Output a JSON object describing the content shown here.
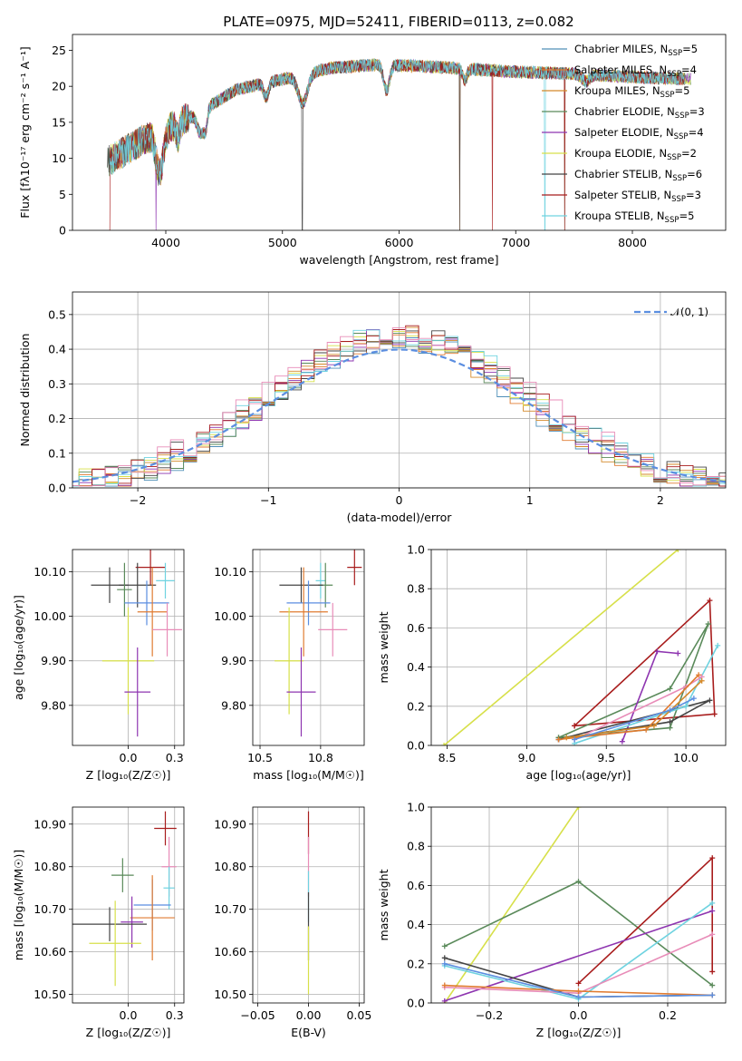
{
  "figure": {
    "title": "PLATE=0975, MJD=52411, FIBERID=0113, z=0.082"
  },
  "chart_data": [
    {
      "id": "spectrum",
      "type": "line",
      "xlabel": "wavelength [Angstrom, rest frame]",
      "ylabel": "Flux [fλ10⁻¹⁷ erg cm⁻² s⁻¹ A⁻¹]",
      "xlim": [
        3200,
        8800
      ],
      "ylim": [
        0,
        27.2
      ],
      "xticks": [
        4000,
        5000,
        6000,
        7000,
        8000
      ],
      "yticks": [
        0,
        5,
        10,
        15,
        20,
        25
      ],
      "grid": false,
      "legend_position": "top-right",
      "continuum": {
        "x": [
          3500,
          3600,
          3800,
          4000,
          4300,
          4600,
          5000,
          5400,
          5800,
          6200,
          6600,
          7000,
          7400,
          8000,
          8500
        ],
        "y": [
          9.5,
          10.5,
          12.5,
          14,
          16.5,
          19.5,
          21,
          22.5,
          23,
          22.8,
          22.4,
          22,
          21.8,
          21.3,
          21
        ]
      },
      "series": [
        {
          "name": "Chabrier MILES, N",
          "sub": "SSP",
          "suffix": "=5",
          "color": "#4f8fb8"
        },
        {
          "name": "Salpeter MILES, N",
          "sub": "SSP",
          "suffix": "=4",
          "color": "#e07b30"
        },
        {
          "name": "Kroupa MILES, N",
          "sub": "SSP",
          "suffix": "=5",
          "color": "#d4892a"
        },
        {
          "name": "Chabrier ELODIE, N",
          "sub": "SSP",
          "suffix": "=3",
          "color": "#5a8a5a"
        },
        {
          "name": "Salpeter ELODIE, N",
          "sub": "SSP",
          "suffix": "=4",
          "color": "#8e35b0"
        },
        {
          "name": "Kroupa ELODIE, N",
          "sub": "SSP",
          "suffix": "=2",
          "color": "#d7e04a"
        },
        {
          "name": "Chabrier STELIB, N",
          "sub": "SSP",
          "suffix": "=6",
          "color": "#444444"
        },
        {
          "name": "Salpeter STELIB, N",
          "sub": "SSP",
          "suffix": "=3",
          "color": "#a81c1c"
        },
        {
          "name": "Kroupa STELIB, N",
          "sub": "SSP",
          "suffix": "=5",
          "color": "#6fd3e0"
        }
      ]
    },
    {
      "id": "residuals",
      "type": "line",
      "xlabel": "(data-model)/error",
      "ylabel": "Normed distribution",
      "xlim": [
        -2.5,
        2.5
      ],
      "ylim": [
        0,
        0.565
      ],
      "xticks": [
        -2,
        -1,
        0,
        1,
        2
      ],
      "yticks": [
        0.0,
        0.1,
        0.2,
        0.3,
        0.4,
        0.5
      ],
      "grid": true,
      "legend_position": "top-right",
      "legend_label": "𝒩(0, 1)",
      "normal_color": "#5b8ee0",
      "hist_colors": [
        "#4f8fb8",
        "#e07b30",
        "#d4892a",
        "#5a8a5a",
        "#8e35b0",
        "#d7e04a",
        "#444444",
        "#a81c1c",
        "#6fd3e0",
        "#e88cb8"
      ]
    },
    {
      "id": "Z-age",
      "type": "scatter",
      "xlabel": "Z [log₁₀(Z/Z☉)]",
      "ylabel": "age  [log₁₀(age/yr)]",
      "xlim": [
        -0.3,
        0.3
      ],
      "ylim": [
        9.71,
        10.15
      ],
      "xticks": [
        0.0,
        0.25
      ],
      "yticks": [
        9.8,
        9.9,
        10.0,
        10.1
      ],
      "grid": true,
      "points": [
        {
          "x": 0.12,
          "y": 10.11,
          "ex": 0.08,
          "ey": 0.04,
          "color": "#a81c1c"
        },
        {
          "x": 0.2,
          "y": 10.08,
          "ex": 0.05,
          "ey": 0.04,
          "color": "#6fd3e0"
        },
        {
          "x": 0.05,
          "y": 10.07,
          "ex": 0.1,
          "ey": 0.05,
          "color": "#444444"
        },
        {
          "x": -0.1,
          "y": 10.07,
          "ex": 0.1,
          "ey": 0.04,
          "color": "#444444"
        },
        {
          "x": -0.02,
          "y": 10.06,
          "ex": 0.04,
          "ey": 0.06,
          "color": "#5a8a5a"
        },
        {
          "x": 0.1,
          "y": 10.03,
          "ex": 0.12,
          "ey": 0.05,
          "color": "#5b8ee0"
        },
        {
          "x": 0.13,
          "y": 10.01,
          "ex": 0.08,
          "ey": 0.1,
          "color": "#e07b30"
        },
        {
          "x": 0.21,
          "y": 9.97,
          "ex": 0.08,
          "ey": 0.06,
          "color": "#e88cb8"
        },
        {
          "x": 0.0,
          "y": 9.9,
          "ex": 0.14,
          "ey": 0.12,
          "color": "#d7e04a"
        },
        {
          "x": 0.05,
          "y": 9.83,
          "ex": 0.07,
          "ey": 0.1,
          "color": "#8e35b0"
        }
      ]
    },
    {
      "id": "mass-age",
      "type": "scatter",
      "xlabel": "mass [log₁₀(M/M☉)]",
      "ylabel": "",
      "xlim": [
        10.47,
        10.93
      ],
      "ylim": [
        9.71,
        10.15
      ],
      "xticks": [
        10.5,
        10.75
      ],
      "yticks": [
        9.8,
        9.9,
        10.0,
        10.1
      ],
      "grid": true,
      "points": [
        {
          "x": 10.89,
          "y": 10.11,
          "ex": 0.03,
          "ey": 0.04,
          "color": "#a81c1c"
        },
        {
          "x": 10.75,
          "y": 10.08,
          "ex": 0.02,
          "ey": 0.04,
          "color": "#6fd3e0"
        },
        {
          "x": 10.77,
          "y": 10.07,
          "ex": 0.03,
          "ey": 0.05,
          "color": "#5a8a5a"
        },
        {
          "x": 10.67,
          "y": 10.07,
          "ex": 0.09,
          "ey": 0.04,
          "color": "#444444"
        },
        {
          "x": 10.7,
          "y": 10.03,
          "ex": 0.09,
          "ey": 0.05,
          "color": "#5b8ee0"
        },
        {
          "x": 10.68,
          "y": 10.01,
          "ex": 0.1,
          "ey": 0.1,
          "color": "#e07b30"
        },
        {
          "x": 10.8,
          "y": 9.97,
          "ex": 0.06,
          "ey": 0.06,
          "color": "#e88cb8"
        },
        {
          "x": 10.62,
          "y": 9.9,
          "ex": 0.06,
          "ey": 0.12,
          "color": "#d7e04a"
        },
        {
          "x": 10.67,
          "y": 9.83,
          "ex": 0.06,
          "ey": 0.1,
          "color": "#8e35b0"
        }
      ]
    },
    {
      "id": "age-weight",
      "type": "line",
      "xlabel": "age  [log₁₀(age/yr)]",
      "ylabel": "mass weight",
      "xlim": [
        8.4,
        10.25
      ],
      "ylim": [
        0,
        1.0
      ],
      "xticks": [
        8.5,
        9.0,
        9.5,
        10.0
      ],
      "yticks": [
        0.0,
        0.2,
        0.4,
        0.6,
        0.8,
        1.0
      ],
      "grid": true,
      "series": [
        {
          "color": "#d7e04a",
          "x": [
            8.48,
            9.95
          ],
          "y": [
            0.0,
            1.0
          ]
        },
        {
          "color": "#a81c1c",
          "x": [
            9.3,
            10.15,
            10.18,
            9.3
          ],
          "y": [
            0.1,
            0.74,
            0.16,
            0.1
          ]
        },
        {
          "color": "#5a8a5a",
          "x": [
            9.2,
            9.9,
            10.14,
            9.9,
            9.2
          ],
          "y": [
            0.04,
            0.09,
            0.62,
            0.29,
            0.04
          ]
        },
        {
          "color": "#8e35b0",
          "x": [
            9.6,
            9.82,
            9.95
          ],
          "y": [
            0.02,
            0.48,
            0.47
          ]
        },
        {
          "color": "#444444",
          "x": [
            9.2,
            9.9,
            10.15,
            9.2
          ],
          "y": [
            0.03,
            0.12,
            0.23,
            0.03
          ]
        },
        {
          "color": "#6fd3e0",
          "x": [
            9.3,
            10.0,
            10.2
          ],
          "y": [
            0.01,
            0.2,
            0.51
          ]
        },
        {
          "color": "#e88cb8",
          "x": [
            9.3,
            10.0,
            10.1
          ],
          "y": [
            0.03,
            0.3,
            0.35
          ]
        },
        {
          "color": "#e07b30",
          "x": [
            9.2,
            9.75,
            10.08
          ],
          "y": [
            0.03,
            0.08,
            0.36
          ]
        },
        {
          "color": "#d4892a",
          "x": [
            9.25,
            9.8,
            10.1
          ],
          "y": [
            0.04,
            0.1,
            0.33
          ]
        },
        {
          "color": "#5b8ee0",
          "x": [
            9.3,
            9.9,
            10.05
          ],
          "y": [
            0.03,
            0.18,
            0.24
          ]
        }
      ]
    },
    {
      "id": "Z-mass",
      "type": "scatter",
      "xlabel": "Z [log₁₀(Z/Z☉)]",
      "ylabel": "mass [log₁₀(M/M☉)]",
      "xlim": [
        -0.3,
        0.3
      ],
      "ylim": [
        10.48,
        10.94
      ],
      "xticks": [
        0.0,
        0.25
      ],
      "yticks": [
        10.5,
        10.6,
        10.7,
        10.8,
        10.9
      ],
      "grid": true,
      "points": [
        {
          "x": 0.2,
          "y": 10.89,
          "ex": 0.06,
          "ey": 0.04,
          "color": "#a81c1c"
        },
        {
          "x": 0.22,
          "y": 10.8,
          "ex": 0.04,
          "ey": 0.07,
          "color": "#e88cb8"
        },
        {
          "x": -0.03,
          "y": 10.78,
          "ex": 0.06,
          "ey": 0.04,
          "color": "#5a8a5a"
        },
        {
          "x": 0.22,
          "y": 10.75,
          "ex": 0.03,
          "ey": 0.05,
          "color": "#6fd3e0"
        },
        {
          "x": 0.13,
          "y": 10.71,
          "ex": 0.1,
          "ey": 0.06,
          "color": "#5b8ee0"
        },
        {
          "x": 0.13,
          "y": 10.68,
          "ex": 0.12,
          "ey": 0.1,
          "color": "#e07b30"
        },
        {
          "x": 0.02,
          "y": 10.67,
          "ex": 0.06,
          "ey": 0.06,
          "color": "#8e35b0"
        },
        {
          "x": -0.1,
          "y": 10.665,
          "ex": 0.2,
          "ey": 0.04,
          "color": "#444444"
        },
        {
          "x": -0.07,
          "y": 10.62,
          "ex": 0.14,
          "ey": 0.1,
          "color": "#d7e04a"
        }
      ]
    },
    {
      "id": "ebv-mass",
      "type": "scatter",
      "xlabel": "E(B-V)",
      "ylabel": "",
      "xlim": [
        -0.055,
        0.055
      ],
      "ylim": [
        10.48,
        10.94
      ],
      "xticks": [
        -0.05,
        0.0,
        0.05
      ],
      "yticks": [
        10.5,
        10.6,
        10.7,
        10.8,
        10.9
      ],
      "grid": true,
      "points": [
        {
          "x": 0.0,
          "y": 10.88,
          "ex": 0.0,
          "ey": 0.05,
          "color": "#a81c1c"
        },
        {
          "x": 0.0,
          "y": 10.8,
          "ex": 0.0,
          "ey": 0.07,
          "color": "#e88cb8"
        },
        {
          "x": 0.0,
          "y": 10.73,
          "ex": 0.0,
          "ey": 0.06,
          "color": "#6fd3e0"
        },
        {
          "x": 0.0,
          "y": 10.66,
          "ex": 0.0,
          "ey": 0.08,
          "color": "#444444"
        },
        {
          "x": 0.0,
          "y": 10.58,
          "ex": 0.0,
          "ey": 0.08,
          "color": "#d7e04a"
        }
      ]
    },
    {
      "id": "Z-weight",
      "type": "line",
      "xlabel": "Z [log₁₀(Z/Z☉)]",
      "ylabel": "mass weight",
      "xlim": [
        -0.33,
        0.33
      ],
      "ylim": [
        0,
        1.0
      ],
      "xticks": [
        -0.2,
        0.0,
        0.2
      ],
      "yticks": [
        0.0,
        0.2,
        0.4,
        0.6,
        0.8,
        1.0
      ],
      "grid": true,
      "series": [
        {
          "color": "#d7e04a",
          "x": [
            -0.3,
            0.0
          ],
          "y": [
            0.0,
            1.0
          ]
        },
        {
          "color": "#5a8a5a",
          "x": [
            -0.3,
            0.0,
            0.3
          ],
          "y": [
            0.29,
            0.62,
            0.09
          ]
        },
        {
          "color": "#a81c1c",
          "x": [
            0.0,
            0.3,
            0.3
          ],
          "y": [
            0.1,
            0.74,
            0.16
          ]
        },
        {
          "color": "#8e35b0",
          "x": [
            -0.3,
            0.3
          ],
          "y": [
            0.01,
            0.47
          ]
        },
        {
          "color": "#444444",
          "x": [
            -0.3,
            0.0,
            0.3
          ],
          "y": [
            0.23,
            0.03,
            0.04
          ]
        },
        {
          "color": "#6fd3e0",
          "x": [
            -0.3,
            0.0,
            0.3
          ],
          "y": [
            0.19,
            0.02,
            0.51
          ]
        },
        {
          "color": "#e88cb8",
          "x": [
            -0.3,
            0.0,
            0.3
          ],
          "y": [
            0.08,
            0.05,
            0.35
          ]
        },
        {
          "color": "#e07b30",
          "x": [
            -0.3,
            0.0,
            0.3
          ],
          "y": [
            0.09,
            0.06,
            0.04
          ]
        },
        {
          "color": "#5b8ee0",
          "x": [
            -0.3,
            0.0,
            0.3
          ],
          "y": [
            0.2,
            0.03,
            0.04
          ]
        }
      ]
    }
  ]
}
